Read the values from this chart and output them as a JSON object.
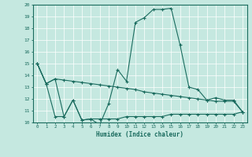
{
  "xlabel": "Humidex (Indice chaleur)",
  "xlim": [
    -0.5,
    23.5
  ],
  "ylim": [
    10,
    20
  ],
  "yticks": [
    10,
    11,
    12,
    13,
    14,
    15,
    16,
    17,
    18,
    19,
    20
  ],
  "xticks": [
    0,
    1,
    2,
    3,
    4,
    5,
    6,
    7,
    8,
    9,
    10,
    11,
    12,
    13,
    14,
    15,
    16,
    17,
    18,
    19,
    20,
    21,
    22,
    23
  ],
  "bg_color": "#c5e8e0",
  "line_color": "#1a6b5e",
  "grid_color": "#ffffff",
  "line1_x": [
    0,
    1,
    2,
    3,
    4,
    5,
    6,
    7,
    8,
    9,
    10,
    11,
    12,
    13,
    14,
    15,
    16,
    17,
    18,
    19,
    20,
    21,
    22,
    23
  ],
  "line1_y": [
    15.0,
    13.3,
    13.7,
    13.6,
    13.5,
    13.4,
    13.3,
    13.2,
    13.1,
    13.0,
    12.9,
    12.8,
    12.6,
    12.5,
    12.4,
    12.3,
    12.2,
    12.1,
    12.0,
    11.9,
    11.8,
    11.8,
    11.8,
    10.9
  ],
  "line2_x": [
    0,
    1,
    2,
    3,
    4,
    5,
    6,
    7,
    8,
    9,
    10,
    11,
    12,
    13,
    14,
    15,
    16,
    17,
    18,
    19,
    20,
    21,
    22,
    23
  ],
  "line2_y": [
    15.0,
    13.3,
    13.7,
    10.5,
    11.9,
    10.2,
    10.3,
    9.8,
    11.6,
    14.5,
    13.5,
    18.5,
    18.9,
    19.6,
    19.6,
    19.7,
    16.6,
    13.0,
    12.8,
    11.9,
    12.1,
    11.9,
    11.9,
    10.9
  ],
  "line3_x": [
    0,
    1,
    2,
    3,
    4,
    5,
    6,
    7,
    8,
    9,
    10,
    11,
    12,
    13,
    14,
    15,
    16,
    17,
    18,
    19,
    20,
    21,
    22,
    23
  ],
  "line3_y": [
    15.0,
    13.3,
    10.5,
    10.5,
    11.9,
    10.2,
    10.3,
    10.3,
    10.3,
    10.3,
    10.5,
    10.5,
    10.5,
    10.5,
    10.5,
    10.7,
    10.7,
    10.7,
    10.7,
    10.7,
    10.7,
    10.7,
    10.7,
    10.9
  ]
}
